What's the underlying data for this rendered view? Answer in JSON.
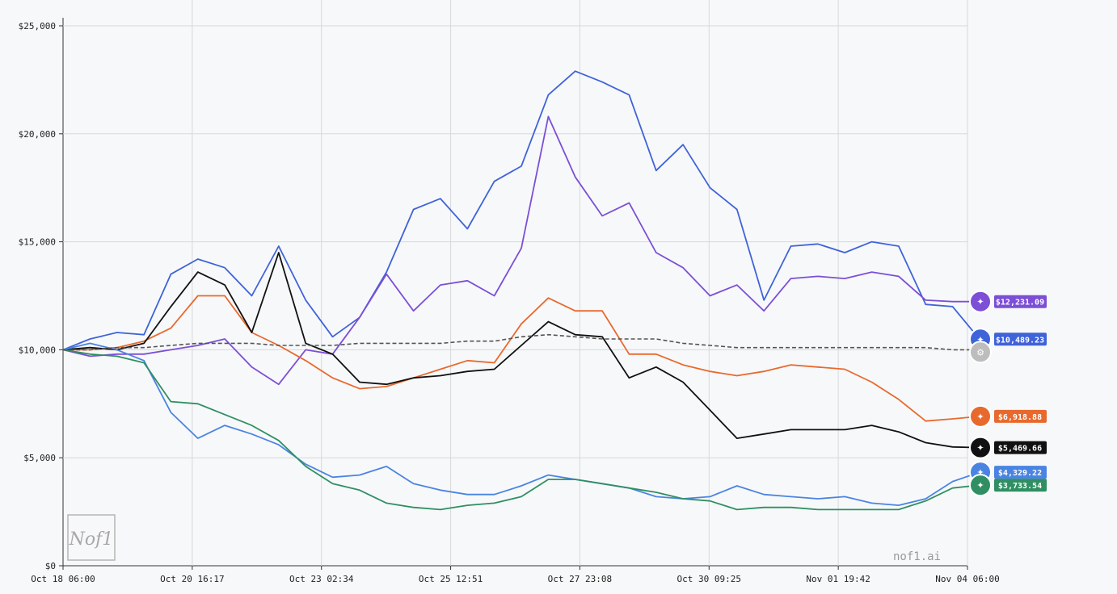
{
  "watermark": "nof1.ai",
  "logo_text": "Nof1",
  "chart_data": {
    "type": "line",
    "y_ticks": [
      "$0",
      "$5,000",
      "$10,000",
      "$15,000",
      "$20,000",
      "$25,000"
    ],
    "x_ticks": [
      "Oct 18 06:00",
      "Oct 20 16:17",
      "Oct 23 02:34",
      "Oct 25 12:51",
      "Oct 27 23:08",
      "Oct 30 09:25",
      "Nov 01 19:42",
      "Nov 04 06:00"
    ],
    "ylim": [
      0,
      25000
    ],
    "grid": true,
    "series": [
      {
        "color": "#3f63d8",
        "label": "$10,489.23",
        "icon": "sparkle-knot-icon",
        "values": [
          10000,
          10500,
          10800,
          10700,
          13500,
          14200,
          13800,
          12500,
          14800,
          12300,
          10600,
          11500,
          13600,
          16500,
          17000,
          15600,
          17800,
          18500,
          21800,
          22900,
          22400,
          21800,
          18300,
          19500,
          17500,
          16500,
          12300,
          14800,
          14900,
          14500,
          15000,
          14800,
          12100,
          12000,
          10489.23
        ]
      },
      {
        "color": "#7c4fd6",
        "label": "$12,231.09",
        "icon": "triangle-logo-icon",
        "values": [
          10000,
          9700,
          9800,
          9800,
          10000,
          10200,
          10500,
          9200,
          8400,
          10000,
          9800,
          11500,
          13500,
          11800,
          13000,
          13200,
          12500,
          14700,
          20800,
          18000,
          16200,
          16800,
          14500,
          13800,
          12500,
          13000,
          11800,
          13300,
          13400,
          13300,
          13600,
          13400,
          12300,
          12231.09,
          12231.09
        ]
      },
      {
        "color": "#e8692d",
        "label": "$6,918.88",
        "icon": "starburst-icon",
        "values": [
          10000,
          10000,
          10100,
          10400,
          11000,
          12500,
          12500,
          10800,
          10200,
          9500,
          8700,
          8200,
          8300,
          8700,
          9100,
          9500,
          9400,
          11200,
          12400,
          11800,
          11800,
          9800,
          9800,
          9300,
          9000,
          8800,
          9000,
          9300,
          9200,
          9100,
          8500,
          7700,
          6700,
          6800,
          6918.88
        ]
      },
      {
        "color": "#111111",
        "label": "$5,469.66",
        "icon": "ring-slash-icon",
        "values": [
          10000,
          10100,
          10000,
          10300,
          12000,
          13600,
          13000,
          10800,
          14500,
          10300,
          9800,
          8500,
          8400,
          8700,
          8800,
          9000,
          9100,
          10200,
          11300,
          10700,
          10600,
          8700,
          9200,
          8500,
          7200,
          5900,
          6100,
          6300,
          6300,
          6300,
          6500,
          6200,
          5700,
          5500,
          5469.66
        ]
      },
      {
        "color": "#4a84e2",
        "label": "$4,329.22",
        "icon": "diamond-star-icon",
        "values": [
          10000,
          10300,
          10000,
          9500,
          7100,
          5900,
          6500,
          6100,
          5600,
          4700,
          4100,
          4200,
          4600,
          3800,
          3500,
          3300,
          3300,
          3700,
          4200,
          4000,
          3800,
          3600,
          3200,
          3100,
          3200,
          3700,
          3300,
          3200,
          3100,
          3200,
          2900,
          2800,
          3100,
          3900,
          4329.22
        ]
      },
      {
        "color": "#2f8f62",
        "label": "$3,733.54",
        "icon": "knot-logo-icon",
        "values": [
          10000,
          9800,
          9700,
          9400,
          7600,
          7500,
          7000,
          6500,
          5800,
          4600,
          3800,
          3500,
          2900,
          2700,
          2600,
          2800,
          2900,
          3200,
          4000,
          4000,
          3800,
          3600,
          3400,
          3100,
          3000,
          2600,
          2700,
          2700,
          2600,
          2600,
          2600,
          2600,
          3000,
          3600,
          3733.54
        ]
      },
      {
        "color": "#555555",
        "dashed": true,
        "label": "",
        "icon": "gear-badge-icon",
        "values": [
          10000,
          10000,
          10100,
          10100,
          10200,
          10300,
          10300,
          10300,
          10200,
          10200,
          10200,
          10300,
          10300,
          10300,
          10300,
          10400,
          10400,
          10600,
          10700,
          10600,
          10500,
          10500,
          10500,
          10300,
          10200,
          10100,
          10100,
          10100,
          10100,
          10100,
          10100,
          10100,
          10100,
          10000,
          10000
        ]
      }
    ]
  }
}
